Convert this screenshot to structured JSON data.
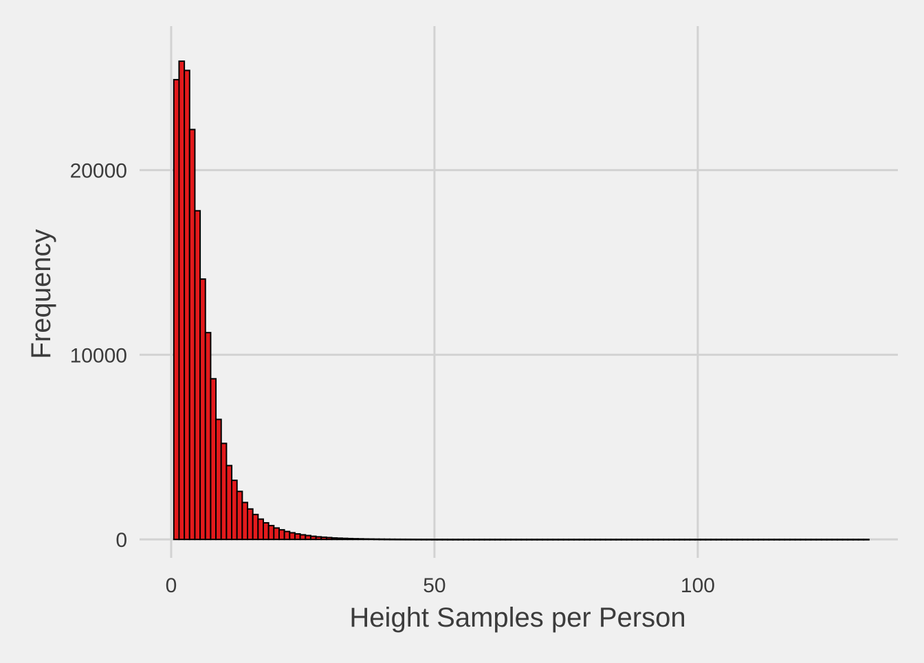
{
  "chart_data": {
    "type": "bar",
    "subtype": "histogram",
    "title": "",
    "xlabel": "Height Samples per Person",
    "ylabel": "Frequency",
    "xlim": [
      -6,
      138
    ],
    "ylim": [
      -1000,
      27800
    ],
    "x_ticks": [
      0,
      50,
      100
    ],
    "x_tick_labels": [
      "0",
      "50",
      "100"
    ],
    "y_ticks": [
      0,
      10000,
      20000
    ],
    "y_tick_labels": [
      "0",
      "10000",
      "20000"
    ],
    "grid": true,
    "legend": "none",
    "bin_width": 1,
    "bin_start": 0.5,
    "values": [
      24900,
      25900,
      25400,
      22200,
      17800,
      14100,
      11200,
      8700,
      6500,
      5200,
      4000,
      3200,
      2600,
      2000,
      1650,
      1350,
      1100,
      900,
      750,
      620,
      520,
      430,
      360,
      300,
      250,
      210,
      170,
      140,
      120,
      100,
      80,
      68,
      56,
      46,
      38,
      32,
      26,
      22,
      18,
      15,
      12,
      10,
      8,
      7,
      6,
      5,
      4,
      3,
      3,
      2,
      2,
      2,
      1,
      1,
      1,
      1,
      1,
      1,
      1,
      1,
      1,
      1,
      1,
      1,
      1,
      1,
      1,
      1,
      1,
      1,
      1,
      1,
      1,
      1,
      1,
      1,
      1,
      1,
      1,
      1,
      1,
      1,
      1,
      1,
      1,
      1,
      1,
      1,
      1,
      1,
      1,
      1,
      1,
      1,
      1,
      1,
      1,
      1,
      1,
      1,
      1,
      1,
      1,
      1,
      1,
      1,
      1,
      1,
      1,
      1,
      1,
      1,
      1,
      1,
      1,
      1,
      1,
      1,
      1,
      1,
      1,
      1,
      1,
      1,
      1,
      1,
      1,
      1,
      1,
      1,
      1,
      1
    ],
    "colors": {
      "bar_fill": "#e31a1c",
      "bar_stroke": "#000000",
      "background": "#f0f0f0",
      "grid": "#d2d2d2",
      "text": "#3c3c3c"
    }
  }
}
